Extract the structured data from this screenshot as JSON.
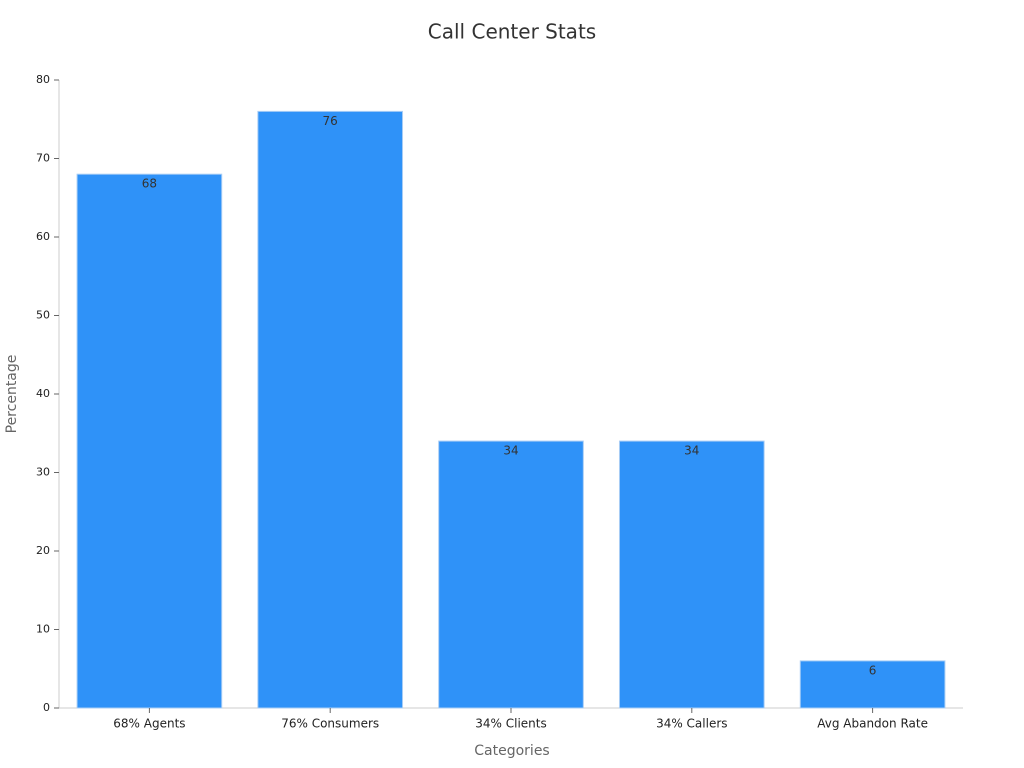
{
  "chart_data": {
    "type": "bar",
    "title": "Call Center Stats",
    "x_label": "Categories",
    "y_label": "Percentage",
    "categories": [
      "68% Agents",
      "76% Consumers",
      "34% Clients",
      "34% Callers",
      "Avg Abandon Rate"
    ],
    "values": [
      68,
      76,
      34,
      34,
      6
    ],
    "color": "#2f92f8",
    "ylim": [
      0,
      80
    ],
    "yticks": [
      0,
      10,
      20,
      30,
      40,
      50,
      60,
      70,
      80
    ],
    "grid": false
  }
}
